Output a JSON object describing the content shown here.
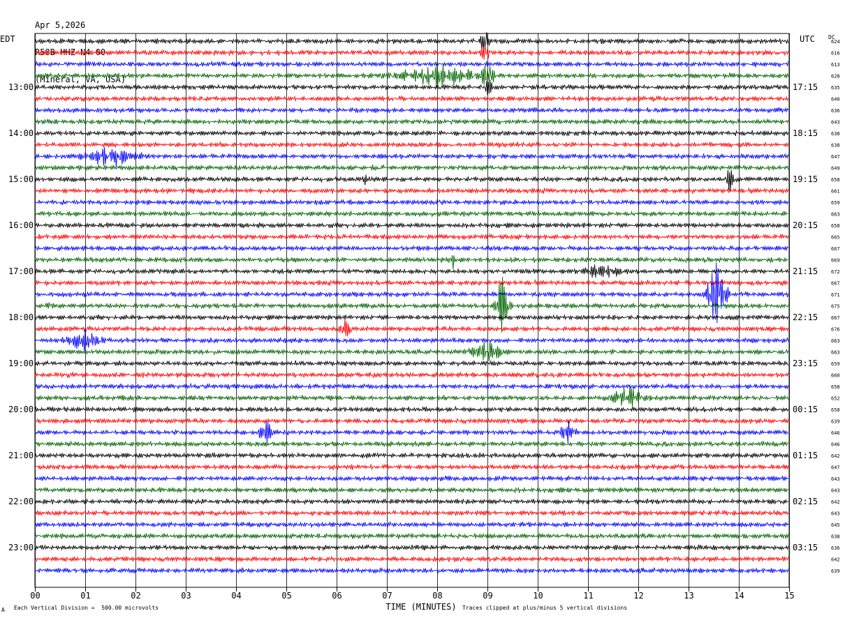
{
  "header": {
    "date": "Apr 5,2026",
    "station": "R58B HHZ N4 00",
    "location": "(Mineral, VA, USA)"
  },
  "footer": {
    "scale_note": "Each Vertical Division =  500.00 microvolts",
    "clip_note": "Traces clipped at plus/minus 5 vertical divisions",
    "corner_mark": "A"
  },
  "chart_data": {
    "type": "line",
    "title": "",
    "xlabel": "TIME (MINUTES)",
    "ylabel_left": "EDT",
    "ylabel_right": "UTC",
    "dc_label": "DC",
    "x_ticks": [
      "00",
      "01",
      "02",
      "03",
      "04",
      "05",
      "06",
      "07",
      "08",
      "09",
      "10",
      "11",
      "12",
      "13",
      "14",
      "15"
    ],
    "xlim": [
      0,
      15
    ],
    "grid": true,
    "trace_colors": [
      "#000000",
      "#ff0000",
      "#0000ff",
      "#006400"
    ],
    "left_hour_labels": [
      "13:00",
      "14:00",
      "15:00",
      "16:00",
      "17:00",
      "18:00",
      "19:00",
      "20:00",
      "21:00",
      "22:00",
      "23:00"
    ],
    "right_hour_labels": [
      "17:15",
      "18:15",
      "19:15",
      "20:15",
      "21:15",
      "22:15",
      "23:15",
      "00:15",
      "01:15",
      "02:15",
      "03:15"
    ],
    "dc_values": [
      "624",
      "616",
      "613",
      "628",
      "635",
      "640",
      "636",
      "643",
      "638",
      "638",
      "647",
      "649",
      "658",
      "661",
      "659",
      "663",
      "658",
      "665",
      "667",
      "669",
      "672",
      "667",
      "671",
      "675",
      "667",
      "676",
      "663",
      "663",
      "659",
      "660",
      "658",
      "652",
      "658",
      "639",
      "646",
      "646",
      "642",
      "647",
      "643",
      "643",
      "642",
      "643",
      "645",
      "638",
      "636",
      "642",
      "639"
    ],
    "events": [
      {
        "trace": 0,
        "minute": 8.95,
        "amplitude": 3.0,
        "duration_min": 0.25
      },
      {
        "trace": 1,
        "minute": 8.95,
        "amplitude": 1.3,
        "duration_min": 0.3
      },
      {
        "trace": 3,
        "minute": 9.0,
        "amplitude": 3.5,
        "duration_min": 0.4
      },
      {
        "trace": 3,
        "minute": 8.0,
        "amplitude": 1.3,
        "duration_min": 3.0
      },
      {
        "trace": 4,
        "minute": 9.0,
        "amplitude": 1.5,
        "duration_min": 0.4
      },
      {
        "trace": 10,
        "minute": 1.5,
        "amplitude": 1.2,
        "duration_min": 2.0
      },
      {
        "trace": 12,
        "minute": 6.6,
        "amplitude": 1.1,
        "duration_min": 0.3
      },
      {
        "trace": 12,
        "minute": 13.8,
        "amplitude": 1.4,
        "duration_min": 0.5
      },
      {
        "trace": 19,
        "minute": 8.3,
        "amplitude": 1.0,
        "duration_min": 0.3
      },
      {
        "trace": 20,
        "minute": 11.3,
        "amplitude": 1.2,
        "duration_min": 1.2
      },
      {
        "trace": 22,
        "minute": 13.55,
        "amplitude": 3.5,
        "duration_min": 0.8
      },
      {
        "trace": 23,
        "minute": 9.3,
        "amplitude": 3.5,
        "duration_min": 0.5
      },
      {
        "trace": 23,
        "minute": 0.3,
        "amplitude": 1.0,
        "duration_min": 0.2
      },
      {
        "trace": 25,
        "minute": 6.2,
        "amplitude": 1.5,
        "duration_min": 0.4
      },
      {
        "trace": 26,
        "minute": 1.0,
        "amplitude": 1.2,
        "duration_min": 1.2
      },
      {
        "trace": 27,
        "minute": 9.0,
        "amplitude": 1.3,
        "duration_min": 1.2
      },
      {
        "trace": 31,
        "minute": 11.8,
        "amplitude": 1.2,
        "duration_min": 1.2
      },
      {
        "trace": 34,
        "minute": 4.6,
        "amplitude": 1.6,
        "duration_min": 0.5
      },
      {
        "trace": 34,
        "minute": 10.6,
        "amplitude": 1.1,
        "duration_min": 0.6
      }
    ]
  }
}
